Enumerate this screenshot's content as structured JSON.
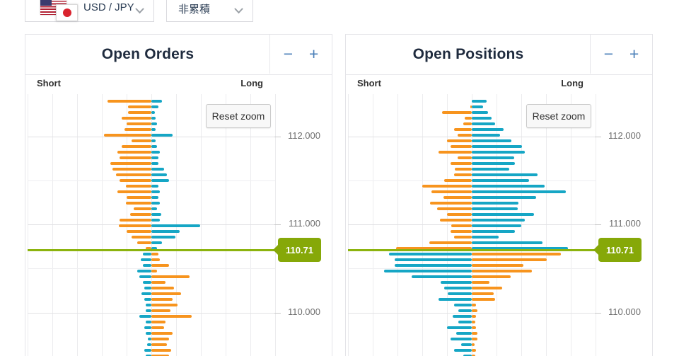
{
  "controls": {
    "pair_selector": {
      "label": "USD / JPY"
    },
    "aggregation_selector": {
      "label": "非累積"
    }
  },
  "panels": [
    {
      "title": "Open Orders",
      "short_label": "Short",
      "long_label": "Long",
      "reset_zoom_label": "Reset zoom",
      "zoom_out_label": "−",
      "zoom_in_label": "+",
      "current_price": "110.71"
    },
    {
      "title": "Open Positions",
      "short_label": "Short",
      "long_label": "Long",
      "reset_zoom_label": "Reset zoom",
      "zoom_out_label": "−",
      "zoom_in_label": "+",
      "current_price": "110.71"
    }
  ],
  "colors": {
    "short_side_above_price": "#F7941E",
    "long_side_above_price": "#16A6C5",
    "short_side_below_price": "#16A6C5",
    "long_side_below_price": "#F7941E",
    "current_price_line": "#8CB30E",
    "price_label_bg": "#86A808",
    "zoom_button_blue": "#4a7fb8"
  },
  "chart_data": [
    {
      "type": "bar",
      "subtype": "diverging-horizontal-pyramid",
      "title": "Open Orders",
      "side_labels": [
        "Short",
        "Long"
      ],
      "price_ticks": [
        "112.000",
        "111.000",
        "110.000"
      ],
      "price_tick_values": [
        112.0,
        111.0,
        110.0
      ],
      "current_price": 110.71,
      "current_price_label": "110.71",
      "row_top_price_approx": 112.42,
      "row_price_step_approx": -0.064,
      "units": "relative magnitude (approx px)",
      "rows": [
        [
          62,
          15
        ],
        [
          33,
          10
        ],
        [
          33,
          5
        ],
        [
          42,
          6
        ],
        [
          35,
          8
        ],
        [
          38,
          6
        ],
        [
          67,
          30
        ],
        [
          28,
          6
        ],
        [
          42,
          8
        ],
        [
          48,
          12
        ],
        [
          45,
          10
        ],
        [
          58,
          10
        ],
        [
          55,
          18
        ],
        [
          50,
          22
        ],
        [
          45,
          25
        ],
        [
          36,
          10
        ],
        [
          48,
          12
        ],
        [
          35,
          10
        ],
        [
          36,
          12
        ],
        [
          25,
          8
        ],
        [
          30,
          14
        ],
        [
          45,
          12
        ],
        [
          46,
          69
        ],
        [
          35,
          40
        ],
        [
          28,
          34
        ],
        [
          20,
          15
        ],
        [
          8,
          8
        ],
        [
          12,
          10
        ],
        [
          15,
          12
        ],
        [
          12,
          25
        ],
        [
          20,
          8
        ],
        [
          17,
          54
        ],
        [
          12,
          20
        ],
        [
          10,
          32
        ],
        [
          14,
          42
        ],
        [
          10,
          30
        ],
        [
          8,
          37
        ],
        [
          8,
          27
        ],
        [
          17,
          57
        ],
        [
          8,
          20
        ],
        [
          10,
          18
        ],
        [
          8,
          30
        ],
        [
          5,
          25
        ],
        [
          6,
          22
        ],
        [
          10,
          28
        ],
        [
          8,
          25
        ]
      ]
    },
    {
      "type": "bar",
      "subtype": "diverging-horizontal-pyramid",
      "title": "Open Positions",
      "side_labels": [
        "Short",
        "Long"
      ],
      "price_ticks": [
        "112.000",
        "111.000",
        "110.000"
      ],
      "price_tick_values": [
        112.0,
        111.0,
        110.0
      ],
      "current_price": 110.71,
      "current_price_label": "110.71",
      "row_top_price_approx": 112.42,
      "row_price_step_approx": -0.064,
      "units": "relative magnitude (approx px)",
      "rows": [
        [
          0,
          21
        ],
        [
          2,
          16
        ],
        [
          42,
          23
        ],
        [
          10,
          28
        ],
        [
          12,
          33
        ],
        [
          25,
          45
        ],
        [
          20,
          40
        ],
        [
          35,
          56
        ],
        [
          30,
          71
        ],
        [
          47,
          75
        ],
        [
          20,
          60
        ],
        [
          30,
          61
        ],
        [
          24,
          53
        ],
        [
          25,
          93
        ],
        [
          39,
          81
        ],
        [
          70,
          103
        ],
        [
          57,
          133
        ],
        [
          40,
          91
        ],
        [
          59,
          66
        ],
        [
          49,
          65
        ],
        [
          35,
          88
        ],
        [
          45,
          75
        ],
        [
          29,
          70
        ],
        [
          30,
          61
        ],
        [
          25,
          38
        ],
        [
          60,
          100
        ],
        [
          107,
          136
        ],
        [
          117,
          126
        ],
        [
          109,
          106
        ],
        [
          109,
          73
        ],
        [
          124,
          85
        ],
        [
          85,
          55
        ],
        [
          44,
          25
        ],
        [
          39,
          43
        ],
        [
          34,
          31
        ],
        [
          47,
          33
        ],
        [
          25,
          6
        ],
        [
          19,
          8
        ],
        [
          27,
          6
        ],
        [
          19,
          5
        ],
        [
          35,
          6
        ],
        [
          22,
          8
        ],
        [
          30,
          8
        ],
        [
          15,
          4
        ],
        [
          25,
          6
        ],
        [
          12,
          5
        ]
      ]
    }
  ]
}
